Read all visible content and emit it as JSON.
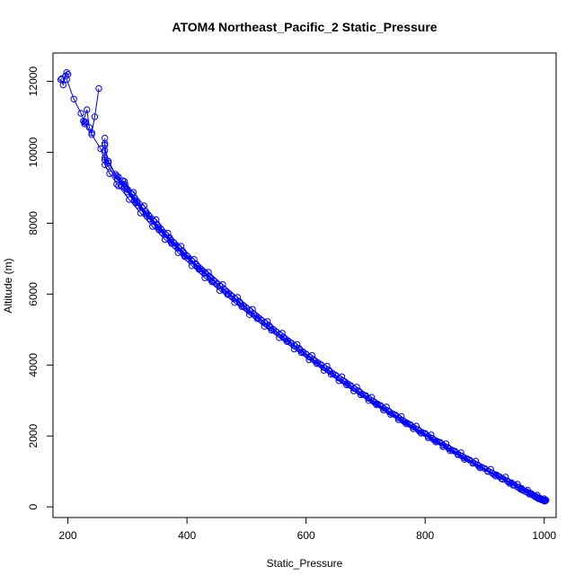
{
  "chart_data": {
    "type": "line",
    "title": "ATOM4 Northeast_Pacific_2 Static_Pressure",
    "xlabel": "Static_Pressure",
    "ylabel": "Altitude (m)",
    "xlim": [
      175,
      1020
    ],
    "ylim": [
      -300,
      12800
    ],
    "x_ticks": [
      200,
      400,
      600,
      800,
      1000
    ],
    "y_ticks": [
      0,
      2000,
      4000,
      6000,
      8000,
      10000,
      12000
    ],
    "grid": false,
    "marker": "open-circle",
    "color": "#0000ff",
    "series": [
      {
        "x": [
          1002,
          995,
          985,
          970,
          955,
          930,
          905,
          880,
          855,
          830,
          805,
          780,
          755,
          730,
          705,
          680,
          655,
          630,
          605,
          580,
          555,
          530,
          505,
          480,
          455,
          430,
          408,
          385,
          363,
          342,
          322,
          303,
          285,
          270,
          262,
          262,
          255,
          240,
          228,
          222,
          210,
          198
        ],
        "y": [
          180,
          200,
          280,
          420,
          560,
          780,
          1000,
          1230,
          1470,
          1700,
          1950,
          2200,
          2460,
          2730,
          3000,
          3270,
          3560,
          3850,
          4150,
          4450,
          4770,
          5090,
          5420,
          5760,
          6100,
          6460,
          6800,
          7170,
          7540,
          7910,
          8290,
          8670,
          9050,
          9400,
          9650,
          9780,
          10100,
          10500,
          10850,
          11100,
          11500,
          12050
        ]
      },
      {
        "x": [
          1000,
          990,
          975,
          960,
          940,
          915,
          890,
          865,
          840,
          815,
          790,
          765,
          740,
          715,
          690,
          665,
          640,
          615,
          590,
          565,
          540,
          515,
          490,
          465,
          440,
          418,
          395,
          373,
          352,
          332,
          312,
          295,
          280,
          268,
          262,
          262
        ],
        "y": [
          170,
          230,
          360,
          500,
          700,
          920,
          1150,
          1390,
          1640,
          1890,
          2140,
          2400,
          2680,
          2950,
          3240,
          3530,
          3820,
          4120,
          4430,
          4740,
          5060,
          5390,
          5730,
          6080,
          6440,
          6780,
          7150,
          7520,
          7890,
          8270,
          8650,
          9020,
          9380,
          9750,
          10050,
          10250
        ]
      },
      {
        "x": [
          998,
          985,
          970,
          950,
          925,
          900,
          875,
          850,
          825,
          800,
          775,
          750,
          725,
          700,
          675,
          650,
          625,
          600,
          575,
          550,
          525,
          500,
          475,
          450,
          425,
          402,
          380,
          358,
          338,
          318,
          300,
          283,
          268,
          262,
          262
        ],
        "y": [
          200,
          300,
          430,
          620,
          850,
          1080,
          1320,
          1570,
          1820,
          2070,
          2320,
          2590,
          2860,
          3140,
          3420,
          3710,
          4010,
          4310,
          4620,
          4940,
          5260,
          5600,
          5940,
          6290,
          6650,
          7000,
          7370,
          7740,
          8120,
          8500,
          8880,
          9250,
          9600,
          9850,
          10400
        ]
      },
      {
        "x": [
          1003,
          992,
          978,
          962,
          945,
          920,
          895,
          870,
          845,
          820,
          795,
          770,
          745,
          720,
          695,
          670,
          645,
          620,
          595,
          570,
          545,
          520,
          495,
          470,
          445,
          422,
          400,
          378,
          356,
          336,
          316,
          298,
          282,
          268,
          262
        ],
        "y": [
          190,
          250,
          380,
          520,
          680,
          900,
          1120,
          1360,
          1600,
          1850,
          2100,
          2360,
          2630,
          2900,
          3180,
          3470,
          3760,
          4060,
          4370,
          4680,
          5000,
          5330,
          5660,
          6010,
          6370,
          6720,
          7080,
          7450,
          7830,
          8210,
          8590,
          8970,
          9330,
          9700,
          10200
        ]
      },
      {
        "x": [
          996,
          982,
          965,
          948,
          928,
          905,
          880,
          855,
          830,
          805,
          780,
          755,
          730,
          705,
          680,
          655,
          630,
          605,
          580,
          555,
          530,
          505,
          480,
          455,
          430,
          408,
          386,
          364,
          344,
          325,
          308,
          292,
          282
        ],
        "y": [
          210,
          320,
          460,
          610,
          800,
          1010,
          1250,
          1490,
          1740,
          1990,
          2250,
          2510,
          2780,
          3060,
          3340,
          3630,
          3930,
          4230,
          4550,
          4870,
          5200,
          5540,
          5880,
          6230,
          6590,
          6940,
          7300,
          7680,
          8050,
          8430,
          8820,
          9200,
          9100
        ]
      },
      {
        "x": [
          1000,
          988,
          972,
          955,
          935,
          910,
          885,
          860,
          835,
          810,
          785,
          760,
          735,
          710,
          685,
          660,
          635,
          610,
          585,
          560,
          535,
          510,
          485,
          460,
          436,
          412,
          390,
          368,
          348,
          328,
          310,
          295
        ],
        "y": [
          230,
          330,
          470,
          640,
          840,
          1060,
          1290,
          1530,
          1780,
          2030,
          2280,
          2550,
          2820,
          3090,
          3380,
          3670,
          3970,
          4270,
          4580,
          4900,
          5230,
          5570,
          5910,
          6270,
          6620,
          6980,
          7350,
          7720,
          8100,
          8490,
          8870,
          9180
        ]
      },
      {
        "x": [
          1001,
          993,
          980,
          963,
          942,
          918,
          892,
          866,
          842,
          818,
          793,
          768,
          742,
          718,
          692,
          668,
          642,
          618,
          592,
          568,
          542,
          518,
          492,
          468,
          442,
          420,
          396,
          374,
          353,
          333,
          314,
          300,
          290
        ],
        "y": [
          160,
          240,
          340,
          480,
          660,
          870,
          1100,
          1340,
          1580,
          1830,
          2080,
          2340,
          2610,
          2880,
          3160,
          3440,
          3740,
          4040,
          4350,
          4660,
          4980,
          5310,
          5650,
          5990,
          6350,
          6700,
          7060,
          7430,
          7810,
          8190,
          8570,
          8950,
          9050
        ]
      },
      {
        "x": [
          999,
          990,
          975,
          958,
          938,
          912,
          888,
          862,
          838,
          812,
          788,
          762,
          738,
          712,
          688,
          662,
          638,
          612,
          588,
          562,
          538,
          512,
          488,
          462,
          438,
          415,
          393,
          371,
          350,
          330,
          312,
          296,
          285
        ],
        "y": [
          175,
          260,
          390,
          550,
          730,
          960,
          1190,
          1430,
          1680,
          1930,
          2180,
          2440,
          2710,
          2990,
          3270,
          3560,
          3860,
          4160,
          4470,
          4790,
          5110,
          5450,
          5790,
          6140,
          6500,
          6850,
          7210,
          7590,
          7960,
          8340,
          8720,
          9100,
          9300
        ]
      },
      {
        "x": [
          190,
          188,
          192,
          196,
          198,
          200
        ],
        "y": [
          12080,
          12050,
          11900,
          12150,
          12250,
          12200
        ]
      },
      {
        "x": [
          230,
          228,
          226,
          232,
          236,
          240,
          245,
          252
        ],
        "y": [
          10850,
          10800,
          10880,
          11200,
          10700,
          10550,
          11000,
          11800
        ]
      }
    ]
  }
}
